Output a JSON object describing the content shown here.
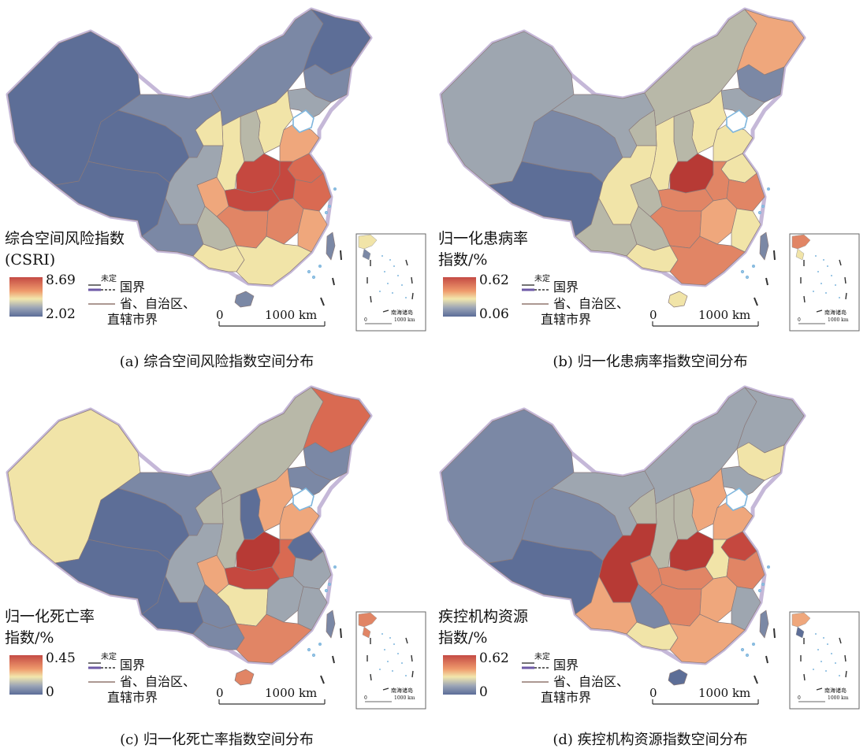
{
  "palette": {
    "c1": "#5d6e97",
    "c2": "#7b88a5",
    "c3": "#9ea6b0",
    "c4": "#b8b8a8",
    "c5": "#f1e4a8",
    "c6": "#efa77c",
    "c7": "#e18565",
    "c8": "#d96a52",
    "c9": "#c5483f",
    "c10": "#b73a35",
    "sea": "#7fb6dd",
    "border": "#c5b8d8"
  },
  "legend": {
    "undetermined_label": "未定",
    "national_border_label": "国界",
    "province_border_label_line1": "省、自治区、",
    "province_border_label_line2": "直辖市界",
    "scale_zero": "0",
    "scale_end": "1000 km",
    "inset_label": "南海诸岛",
    "inset_scale_zero": "0",
    "inset_scale_end": "1000 km"
  },
  "panels": [
    {
      "legend_title_line1": "综合空间风险指数",
      "legend_title_line2": "(CSRI)",
      "legend_max": "8.69",
      "legend_min": "2.02",
      "caption": "(a) 综合空间风险指数空间分布",
      "fills": {
        "xj": "c1",
        "tb": "c1",
        "qh": "c1",
        "gs": "c2",
        "nm": "c2",
        "hlj": "c1",
        "jl": "c2",
        "ln": "c3",
        "hb": "c5",
        "sx": "c4",
        "sd": "c6",
        "hn": "c9",
        "ah": "c9",
        "js": "c8",
        "zj": "c8",
        "sc": "c3",
        "cq": "c6",
        "hub": "c9",
        "hun": "c7",
        "jx": "c7",
        "fj": "c6",
        "gd": "c5",
        "gx": "c5",
        "yn": "c2",
        "gz": "c4",
        "nx": "c5",
        "sn": "c5",
        "hi": "c2",
        "tw": "c2"
      }
    },
    {
      "legend_title_line1": "归一化患病率",
      "legend_title_line2": "指数/%",
      "legend_max": "0.62",
      "legend_min": "0.06",
      "caption": "(b) 归一化患病率指数空间分布",
      "fills": {
        "xj": "c3",
        "tb": "c1",
        "qh": "c2",
        "gs": "c3",
        "nm": "c4",
        "hlj": "c6",
        "jl": "c2",
        "ln": "c3",
        "hb": "c5",
        "sx": "c4",
        "sd": "c5",
        "hn": "c10",
        "ah": "c7",
        "js": "c5",
        "zj": "c7",
        "sc": "c5",
        "cq": "c4",
        "hub": "c7",
        "hun": "c7",
        "jx": "c6",
        "fj": "c5",
        "gd": "c7",
        "gx": "c5",
        "yn": "c4",
        "gz": "c4",
        "nx": "c4",
        "sn": "c5",
        "hi": "c5",
        "tw": "c2"
      }
    },
    {
      "legend_title_line1": "归一化死亡率",
      "legend_title_line2": "指数/%",
      "legend_max": "0.45",
      "legend_min": "0",
      "caption": "(c) 归一化死亡率指数空间分布",
      "fills": {
        "xj": "c5",
        "tb": "c1",
        "qh": "c1",
        "gs": "c2",
        "nm": "c4",
        "hlj": "c8",
        "jl": "c2",
        "ln": "c2",
        "hb": "c6",
        "sx": "c1",
        "sd": "c6",
        "hn": "c10",
        "ah": "c8",
        "js": "c1",
        "zj": "c3",
        "sc": "c3",
        "cq": "c6",
        "hub": "c9",
        "hun": "c5",
        "jx": "c3",
        "fj": "c3",
        "gd": "c7",
        "gx": "c2",
        "yn": "c1",
        "gz": "c2",
        "nx": "c4",
        "sn": "c4",
        "hi": "c7",
        "tw": "c2"
      }
    },
    {
      "legend_title_line1": "疾控机构资源",
      "legend_title_line2": "指数/%",
      "legend_max": "0.62",
      "legend_min": "0",
      "caption": "(d) 疾控机构资源指数空间分布",
      "fills": {
        "xj": "c2",
        "tb": "c1",
        "qh": "c2",
        "gs": "c3",
        "nm": "c3",
        "hlj": "c3",
        "jl": "c5",
        "ln": "c3",
        "hb": "c6",
        "sx": "c4",
        "sd": "c6",
        "hn": "c10",
        "ah": "c5",
        "js": "c9",
        "zj": "c7",
        "sc": "c10",
        "cq": "c7",
        "hub": "c7",
        "hun": "c7",
        "jx": "c6",
        "fj": "c3",
        "gd": "c6",
        "gx": "c5",
        "yn": "c6",
        "gz": "c2",
        "nx": "c4",
        "sn": "c4",
        "hi": "c1",
        "tw": "c2"
      }
    }
  ]
}
